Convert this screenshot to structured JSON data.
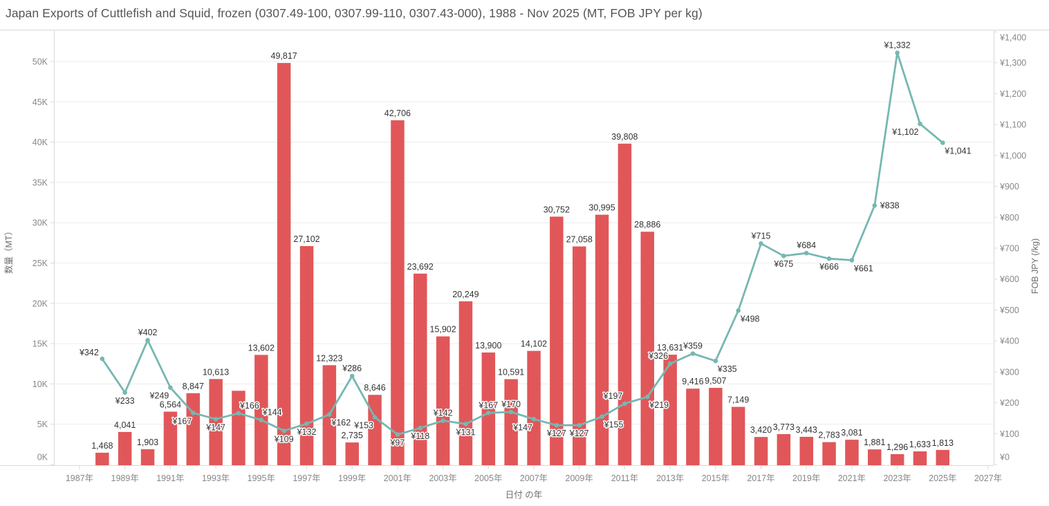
{
  "title": "Japan Exports of Cuttlefish and Squid, frozen (0307.49-100, 0307.99-110, 0307.43-000), 1988 - Nov 2025 (MT, FOB JPY per kg)",
  "colors": {
    "bar": "#e15759",
    "line": "#76b7b2",
    "mark_label": "#333333",
    "tick_label": "#878787",
    "axis_title": "#6e6e6e",
    "grid": "#ececec",
    "frame": "#d8d8d8",
    "title_text": "#555555",
    "background": "#ffffff"
  },
  "chart_data": {
    "type": "combo",
    "title": "Japan Exports of Cuttlefish and Squid, frozen (0307.49-100, 0307.99-110, 0307.43-000), 1988 - Nov 2025 (MT, FOB JPY per kg)",
    "xlabel": "日付 の年",
    "ylabel_left": "数量（MT）",
    "ylabel_right": "FOB JPY (/kg)",
    "ylim_left": [
      0,
      50000
    ],
    "ylim_right": [
      0,
      1400
    ],
    "grid": "horizontal-only",
    "legend": "none",
    "x_years": [
      1988,
      1989,
      1990,
      1991,
      1992,
      1993,
      1994,
      1995,
      1996,
      1997,
      1998,
      1999,
      2000,
      2001,
      2002,
      2003,
      2004,
      2005,
      2006,
      2007,
      2008,
      2009,
      2010,
      2011,
      2012,
      2013,
      2014,
      2015,
      2016,
      2017,
      2018,
      2019,
      2020,
      2021,
      2022,
      2023,
      2024,
      2025
    ],
    "x_axis_ticks": [
      "1987年",
      "1989年",
      "1991年",
      "1993年",
      "1995年",
      "1997年",
      "1999年",
      "2001年",
      "2003年",
      "2005年",
      "2007年",
      "2009年",
      "2011年",
      "2013年",
      "2015年",
      "2017年",
      "2019年",
      "2021年",
      "2023年",
      "2025年",
      "2027年"
    ],
    "left_axis_ticks": [
      "0K",
      "5K",
      "10K",
      "15K",
      "20K",
      "25K",
      "30K",
      "35K",
      "40K",
      "45K",
      "50K"
    ],
    "right_axis_ticks": [
      "¥0",
      "¥100",
      "¥200",
      "¥300",
      "¥400",
      "¥500",
      "¥600",
      "¥700",
      "¥800",
      "¥900",
      "¥1,000",
      "¥1,100",
      "¥1,200",
      "¥1,300",
      "¥1,400"
    ],
    "series": [
      {
        "name": "数量（MT）",
        "type": "bar",
        "axis": "left",
        "values": [
          1468,
          4041,
          1903,
          6564,
          8847,
          10613,
          9150,
          13602,
          49817,
          27102,
          12323,
          2735,
          8646,
          42706,
          23692,
          15902,
          20249,
          13900,
          10591,
          14102,
          30752,
          27058,
          30995,
          39808,
          28886,
          13631,
          9416,
          9507,
          7149,
          3420,
          3773,
          3443,
          2783,
          3081,
          1881,
          1296,
          1633,
          1813
        ],
        "labels": [
          "1,468",
          "4,041",
          "1,903",
          "6,564",
          "8,847",
          "10,613",
          "",
          "13,602",
          "49,817",
          "27,102",
          "12,323",
          "2,735",
          "8,646",
          "42,706",
          "23,692",
          "15,902",
          "20,249",
          "13,900",
          "10,591",
          "14,102",
          "30,752",
          "27,058",
          "30,995",
          "39,808",
          "28,886",
          "13,631",
          "9,416",
          "9,507",
          "7,149",
          "3,420",
          "3,773",
          "3,443",
          "2,783",
          "3,081",
          "1,881",
          "1,296",
          "1,633",
          "1,813"
        ]
      },
      {
        "name": "FOB JPY (/kg)",
        "type": "line",
        "axis": "right",
        "values": [
          342,
          233,
          402,
          249,
          167,
          147,
          166,
          144,
          109,
          132,
          162,
          286,
          153,
          97,
          118,
          142,
          131,
          167,
          170,
          147,
          127,
          127,
          155,
          197,
          219,
          326,
          359,
          335,
          498,
          715,
          675,
          684,
          666,
          661,
          838,
          1332,
          1102,
          1041
        ],
        "labels": [
          "¥342",
          "¥233",
          "¥402",
          "¥249",
          "¥167",
          "¥147",
          "¥166",
          "¥144",
          "¥109",
          "¥132",
          "¥162",
          "¥286",
          "¥153",
          "¥97",
          "¥118",
          "¥142",
          "¥131",
          "¥167",
          "¥170",
          "¥147",
          "¥127",
          "¥127",
          "¥155",
          "¥197",
          "¥219",
          "¥326",
          "¥359",
          "¥335",
          "¥498",
          "¥715",
          "¥675",
          "¥684",
          "¥666",
          "¥661",
          "¥838",
          "¥1,332",
          "¥1,102",
          "¥1,041"
        ],
        "label_pos": [
          "left",
          "below",
          "above",
          "below-left",
          "below-left",
          "below",
          "above-right",
          "above-right",
          "below",
          "below",
          "below-right",
          "above",
          "below-left",
          "below",
          "below",
          "above",
          "below",
          "above",
          "above",
          "below-left",
          "below",
          "below",
          "below-right",
          "above-left",
          "below-right",
          "above-left",
          "above",
          "below-right",
          "below-right",
          "above",
          "below",
          "above",
          "below",
          "below-right",
          "right",
          "above",
          "below-left",
          "below-right"
        ]
      }
    ]
  }
}
